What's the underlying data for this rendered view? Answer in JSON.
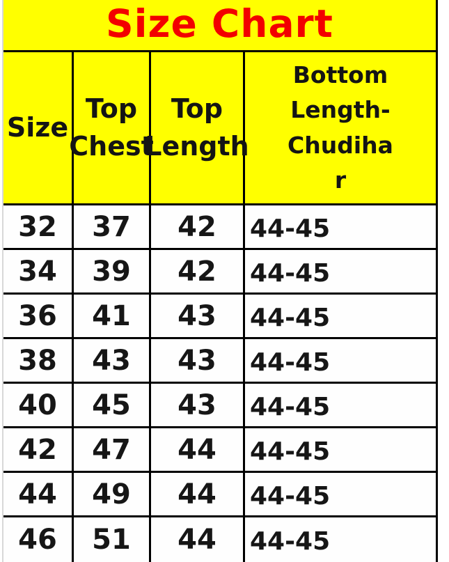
{
  "chart_data": {
    "type": "table",
    "title": "Size Chart",
    "columns": [
      "Size",
      "Top Chest",
      "Top Length",
      "Bottom Length-Chudihar"
    ],
    "rows": [
      [
        "32",
        "37",
        "42",
        "44-45"
      ],
      [
        "34",
        "39",
        "42",
        "44-45"
      ],
      [
        "36",
        "41",
        "43",
        "44-45"
      ],
      [
        "38",
        "43",
        "43",
        "44-45"
      ],
      [
        "40",
        "45",
        "43",
        "44-45"
      ],
      [
        "42",
        "47",
        "44",
        "44-45"
      ],
      [
        "44",
        "49",
        "44",
        "44-45"
      ],
      [
        "46",
        "51",
        "44",
        "44-45"
      ]
    ],
    "layout": {
      "header_background": "#ffff00",
      "title_color": "#f20000",
      "border_color": "#000000",
      "body_background": "#ffffff",
      "grid": "on"
    }
  },
  "display": {
    "header_lines": {
      "col0": "Size",
      "col1": "Top\nChest",
      "col2": "Top\nLength",
      "col3": "Bottom\nLength-\nChudiha\nr"
    }
  }
}
